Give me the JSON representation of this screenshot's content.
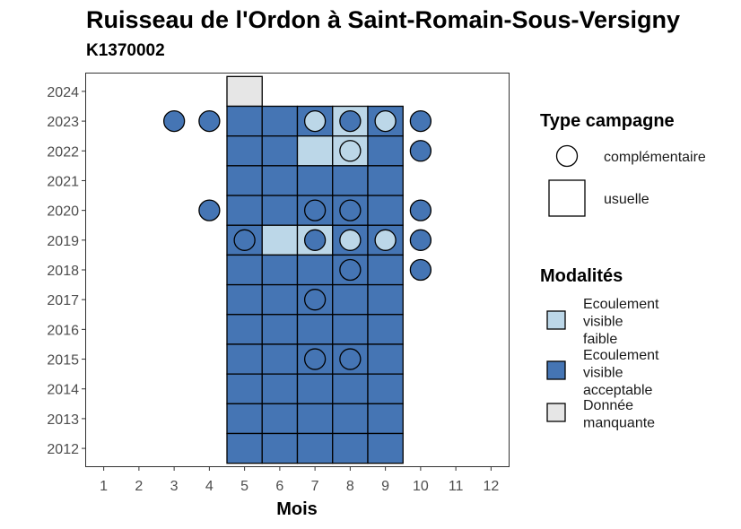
{
  "title": "Ruisseau de l'Ordon à Saint-Romain-Sous-Versigny",
  "subtitle": "K1370002",
  "colors": {
    "faible": "#bcd7e8",
    "acceptable": "#4575b4",
    "manquante": "#e6e6e6"
  },
  "legend": {
    "type_title": "Type campagne",
    "type_items": [
      {
        "label": "complémentaire",
        "shape": "circle"
      },
      {
        "label": "usuelle",
        "shape": "square"
      }
    ],
    "mod_title": "Modalités",
    "mod_items": [
      {
        "lines": [
          "Ecoulement",
          "visible",
          "faible"
        ],
        "color_key": "faible"
      },
      {
        "lines": [
          "Ecoulement",
          "visible",
          "acceptable"
        ],
        "color_key": "acceptable"
      },
      {
        "lines": [
          "Donnée",
          "manquante"
        ],
        "color_key": "manquante"
      }
    ]
  },
  "chart_data": {
    "type": "heatmap",
    "xlabel": "Mois",
    "ylabel": "",
    "x_ticks": [
      1,
      2,
      3,
      4,
      5,
      6,
      7,
      8,
      9,
      10,
      11,
      12
    ],
    "y_ticks": [
      2012,
      2013,
      2014,
      2015,
      2016,
      2017,
      2018,
      2019,
      2020,
      2021,
      2022,
      2023,
      2024
    ],
    "xlim": [
      0.5,
      12.5
    ],
    "ylim": [
      2011.4,
      2024.6
    ],
    "usuelle": [
      {
        "year": 2024,
        "months": {
          "5": "manquante"
        }
      },
      {
        "year": 2023,
        "months": {
          "5": "acceptable",
          "6": "acceptable",
          "7": "acceptable",
          "8": "faible",
          "9": "acceptable"
        }
      },
      {
        "year": 2022,
        "months": {
          "5": "acceptable",
          "6": "acceptable",
          "7": "faible",
          "8": "faible",
          "9": "acceptable"
        }
      },
      {
        "year": 2021,
        "months": {
          "5": "acceptable",
          "6": "acceptable",
          "7": "acceptable",
          "8": "acceptable",
          "9": "acceptable"
        }
      },
      {
        "year": 2020,
        "months": {
          "5": "acceptable",
          "6": "acceptable",
          "7": "acceptable",
          "8": "acceptable",
          "9": "acceptable"
        }
      },
      {
        "year": 2019,
        "months": {
          "5": "acceptable",
          "6": "faible",
          "7": "faible",
          "8": "acceptable",
          "9": "acceptable"
        }
      },
      {
        "year": 2018,
        "months": {
          "5": "acceptable",
          "6": "acceptable",
          "7": "acceptable",
          "8": "acceptable",
          "9": "acceptable"
        }
      },
      {
        "year": 2017,
        "months": {
          "5": "acceptable",
          "6": "acceptable",
          "7": "acceptable",
          "8": "acceptable",
          "9": "acceptable"
        }
      },
      {
        "year": 2016,
        "months": {
          "5": "acceptable",
          "6": "acceptable",
          "7": "acceptable",
          "8": "acceptable",
          "9": "acceptable"
        }
      },
      {
        "year": 2015,
        "months": {
          "5": "acceptable",
          "6": "acceptable",
          "7": "acceptable",
          "8": "acceptable",
          "9": "acceptable"
        }
      },
      {
        "year": 2014,
        "months": {
          "5": "acceptable",
          "6": "acceptable",
          "7": "acceptable",
          "8": "acceptable",
          "9": "acceptable"
        }
      },
      {
        "year": 2013,
        "months": {
          "5": "acceptable",
          "6": "acceptable",
          "7": "acceptable",
          "8": "acceptable",
          "9": "acceptable"
        }
      },
      {
        "year": 2012,
        "months": {
          "5": "acceptable",
          "6": "acceptable",
          "7": "acceptable",
          "8": "acceptable",
          "9": "acceptable"
        }
      }
    ],
    "complementaire": [
      {
        "year": 2023,
        "month": 3,
        "status": "acceptable"
      },
      {
        "year": 2023,
        "month": 4,
        "status": "acceptable"
      },
      {
        "year": 2023,
        "month": 7,
        "status": "faible"
      },
      {
        "year": 2023,
        "month": 8,
        "status": "acceptable"
      },
      {
        "year": 2023,
        "month": 9,
        "status": "faible"
      },
      {
        "year": 2023,
        "month": 10,
        "status": "acceptable"
      },
      {
        "year": 2022,
        "month": 8,
        "status": "faible"
      },
      {
        "year": 2022,
        "month": 10,
        "status": "acceptable"
      },
      {
        "year": 2020,
        "month": 4,
        "status": "acceptable"
      },
      {
        "year": 2020,
        "month": 7,
        "status": "acceptable"
      },
      {
        "year": 2020,
        "month": 8,
        "status": "acceptable"
      },
      {
        "year": 2020,
        "month": 10,
        "status": "acceptable"
      },
      {
        "year": 2019,
        "month": 5,
        "status": "acceptable"
      },
      {
        "year": 2019,
        "month": 7,
        "status": "acceptable"
      },
      {
        "year": 2019,
        "month": 8,
        "status": "faible"
      },
      {
        "year": 2019,
        "month": 9,
        "status": "faible"
      },
      {
        "year": 2019,
        "month": 10,
        "status": "acceptable"
      },
      {
        "year": 2018,
        "month": 8,
        "status": "acceptable"
      },
      {
        "year": 2018,
        "month": 10,
        "status": "acceptable"
      },
      {
        "year": 2017,
        "month": 7,
        "status": "acceptable"
      },
      {
        "year": 2015,
        "month": 7,
        "status": "acceptable"
      },
      {
        "year": 2015,
        "month": 8,
        "status": "acceptable"
      }
    ]
  }
}
